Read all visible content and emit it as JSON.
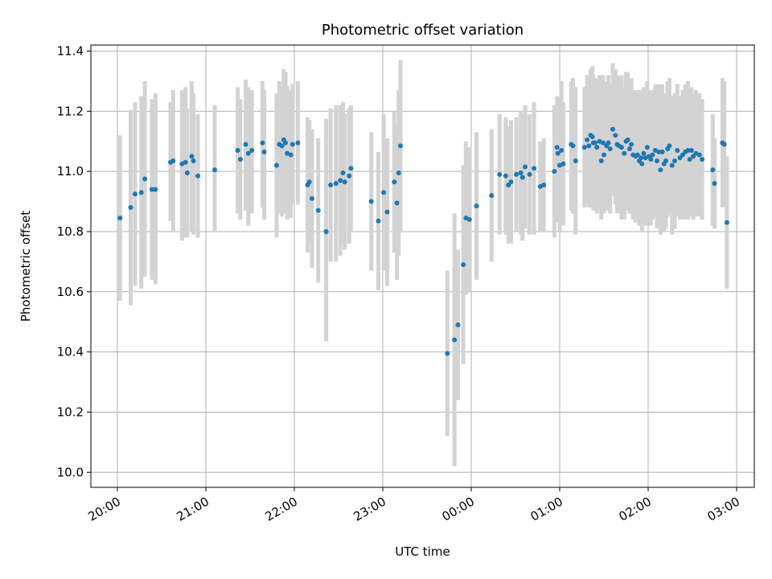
{
  "chart_data": {
    "type": "scatter",
    "title": "Photometric offset variation",
    "xlabel": "UTC time",
    "ylabel": "Photometric offset",
    "x_unit": "hours after 20:00 UTC",
    "xlim": [
      -0.3,
      7.2
    ],
    "ylim": [
      9.95,
      11.42
    ],
    "x_ticks": [
      0,
      1,
      2,
      3,
      4,
      5,
      6,
      7
    ],
    "x_tick_labels": [
      "20:00",
      "21:00",
      "22:00",
      "23:00",
      "00:00",
      "01:00",
      "02:00",
      "03:00"
    ],
    "y_ticks": [
      10.0,
      10.2,
      10.4,
      10.6,
      10.8,
      11.0,
      11.2,
      11.4
    ],
    "y_tick_labels": [
      "10.0",
      "10.2",
      "10.4",
      "10.6",
      "10.8",
      "11.0",
      "11.2",
      "11.4"
    ],
    "grid": true,
    "colors": {
      "point": "#1f77b4",
      "errorbar": "#d3d3d3",
      "grid": "#b0b0b0"
    },
    "series": [
      {
        "points": [
          [
            0.03,
            10.845,
            10.57,
            11.12
          ],
          [
            0.15,
            10.88,
            10.555,
            11.205
          ],
          [
            0.2,
            10.925,
            10.62,
            11.23
          ],
          [
            0.27,
            10.93,
            10.61,
            11.25
          ],
          [
            0.31,
            10.975,
            10.65,
            11.3
          ],
          [
            0.39,
            10.94,
            10.64,
            11.24
          ],
          [
            0.43,
            10.94,
            10.625,
            11.26
          ],
          [
            0.6,
            11.03,
            10.835,
            11.23
          ],
          [
            0.63,
            11.035,
            10.8,
            11.27
          ],
          [
            0.73,
            11.025,
            10.77,
            11.27
          ],
          [
            0.77,
            11.03,
            10.78,
            11.28
          ],
          [
            0.79,
            10.995,
            10.78,
            11.21
          ],
          [
            0.84,
            11.05,
            10.8,
            11.3
          ],
          [
            0.86,
            11.035,
            10.79,
            11.26
          ],
          [
            0.91,
            10.985,
            10.78,
            11.19
          ],
          [
            1.1,
            11.005,
            10.8,
            11.22
          ],
          [
            1.36,
            11.07,
            10.86,
            11.28
          ],
          [
            1.39,
            11.04,
            10.84,
            11.24
          ],
          [
            1.45,
            11.09,
            10.87,
            11.305
          ],
          [
            1.48,
            11.06,
            10.82,
            11.28
          ],
          [
            1.52,
            11.07,
            10.86,
            11.27
          ],
          [
            1.64,
            11.095,
            10.88,
            11.3
          ],
          [
            1.66,
            11.065,
            10.84,
            11.27
          ],
          [
            1.8,
            11.02,
            10.78,
            11.26
          ],
          [
            1.83,
            11.09,
            10.86,
            11.3
          ],
          [
            1.86,
            11.085,
            10.85,
            11.28
          ],
          [
            1.88,
            11.105,
            10.86,
            11.34
          ],
          [
            1.9,
            11.095,
            10.86,
            11.33
          ],
          [
            1.92,
            11.06,
            10.84,
            11.285
          ],
          [
            1.96,
            11.055,
            10.845,
            11.27
          ],
          [
            1.98,
            11.09,
            10.89,
            11.29
          ],
          [
            2.04,
            11.095,
            10.89,
            11.3
          ],
          [
            2.15,
            10.955,
            10.73,
            11.18
          ],
          [
            2.17,
            10.965,
            10.76,
            11.17
          ],
          [
            2.2,
            10.91,
            10.68,
            11.14
          ],
          [
            2.27,
            10.87,
            10.63,
            11.11
          ],
          [
            2.36,
            10.8,
            10.435,
            11.175
          ],
          [
            2.41,
            10.955,
            10.7,
            11.21
          ],
          [
            2.47,
            10.96,
            10.7,
            11.22
          ],
          [
            2.52,
            10.97,
            10.72,
            11.22
          ],
          [
            2.55,
            10.995,
            10.76,
            11.23
          ],
          [
            2.57,
            10.965,
            10.74,
            11.19
          ],
          [
            2.62,
            10.985,
            10.76,
            11.21
          ],
          [
            2.64,
            11.01,
            10.8,
            11.22
          ],
          [
            2.87,
            10.9,
            10.67,
            11.13
          ],
          [
            2.95,
            10.835,
            10.605,
            11.065
          ],
          [
            3.01,
            10.93,
            10.67,
            11.19
          ],
          [
            3.05,
            10.865,
            10.62,
            11.11
          ],
          [
            3.13,
            10.965,
            10.73,
            11.2
          ],
          [
            3.16,
            10.895,
            10.64,
            11.15
          ],
          [
            3.18,
            10.995,
            10.72,
            11.27
          ],
          [
            3.2,
            11.085,
            10.8,
            11.37
          ],
          [
            3.73,
            10.395,
            10.12,
            10.67
          ],
          [
            3.81,
            10.44,
            10.02,
            10.86
          ],
          [
            3.85,
            10.49,
            10.24,
            10.74
          ],
          [
            3.91,
            10.69,
            10.36,
            11.02
          ],
          [
            3.94,
            10.845,
            10.59,
            11.1
          ],
          [
            3.98,
            10.84,
            10.6,
            11.08
          ],
          [
            4.06,
            10.885,
            10.64,
            11.13
          ],
          [
            4.23,
            10.92,
            10.7,
            11.14
          ],
          [
            4.32,
            10.99,
            10.79,
            11.19
          ],
          [
            4.39,
            10.985,
            10.79,
            11.18
          ],
          [
            4.42,
            10.955,
            10.76,
            11.15
          ],
          [
            4.45,
            10.965,
            10.76,
            11.17
          ],
          [
            4.51,
            10.99,
            10.8,
            11.18
          ],
          [
            4.56,
            10.995,
            10.79,
            11.2
          ],
          [
            4.58,
            10.98,
            10.77,
            11.19
          ],
          [
            4.61,
            11.015,
            10.81,
            11.22
          ],
          [
            4.66,
            10.99,
            10.79,
            11.19
          ],
          [
            4.71,
            11.01,
            10.79,
            11.23
          ],
          [
            4.78,
            10.95,
            10.8,
            11.1
          ],
          [
            4.82,
            10.955,
            10.8,
            11.11
          ],
          [
            4.94,
            11.0,
            10.78,
            11.22
          ],
          [
            4.97,
            11.08,
            10.83,
            11.25
          ],
          [
            4.98,
            11.06,
            10.84,
            11.24
          ],
          [
            5.0,
            11.02,
            10.8,
            11.24
          ],
          [
            5.02,
            11.07,
            10.84,
            11.3
          ],
          [
            5.04,
            11.025,
            10.82,
            11.23
          ],
          [
            5.13,
            11.09,
            10.87,
            11.3
          ],
          [
            5.15,
            11.085,
            10.86,
            11.31
          ],
          [
            5.18,
            11.035,
            10.79,
            11.28
          ],
          [
            5.28,
            11.08,
            10.88,
            11.28
          ],
          [
            5.31,
            11.105,
            10.89,
            11.32
          ],
          [
            5.33,
            11.085,
            10.88,
            11.28
          ],
          [
            5.35,
            11.12,
            10.89,
            11.34
          ],
          [
            5.37,
            11.115,
            10.88,
            11.35
          ],
          [
            5.38,
            11.095,
            10.87,
            11.32
          ],
          [
            5.4,
            11.095,
            10.88,
            11.31
          ],
          [
            5.42,
            11.08,
            10.86,
            11.3
          ],
          [
            5.45,
            11.1,
            10.88,
            11.32
          ],
          [
            5.47,
            11.035,
            10.84,
            11.23
          ],
          [
            5.49,
            11.095,
            10.87,
            11.32
          ],
          [
            5.5,
            11.055,
            10.86,
            11.27
          ],
          [
            5.53,
            11.085,
            10.87,
            11.3
          ],
          [
            5.55,
            11.095,
            10.87,
            11.32
          ],
          [
            5.57,
            11.075,
            10.86,
            11.29
          ],
          [
            5.6,
            11.14,
            10.92,
            11.36
          ],
          [
            5.63,
            11.12,
            10.89,
            11.34
          ],
          [
            5.65,
            11.09,
            10.86,
            11.32
          ],
          [
            5.67,
            11.085,
            10.86,
            11.31
          ],
          [
            5.7,
            11.08,
            10.84,
            11.32
          ],
          [
            5.73,
            11.06,
            10.84,
            11.28
          ],
          [
            5.75,
            11.1,
            10.87,
            11.33
          ],
          [
            5.77,
            11.105,
            10.88,
            11.33
          ],
          [
            5.79,
            11.075,
            10.86,
            11.29
          ],
          [
            5.81,
            11.09,
            10.87,
            11.31
          ],
          [
            5.83,
            11.055,
            10.84,
            11.27
          ],
          [
            5.86,
            11.05,
            10.83,
            11.27
          ],
          [
            5.88,
            11.055,
            10.84,
            11.27
          ],
          [
            5.9,
            11.035,
            10.82,
            11.25
          ],
          [
            5.92,
            11.045,
            10.82,
            11.27
          ],
          [
            5.93,
            11.025,
            10.8,
            11.25
          ],
          [
            5.95,
            11.06,
            10.84,
            11.28
          ],
          [
            5.97,
            11.045,
            10.82,
            11.27
          ],
          [
            5.99,
            11.08,
            10.86,
            11.3
          ],
          [
            6.01,
            11.05,
            10.83,
            11.27
          ],
          [
            6.03,
            11.04,
            10.82,
            11.26
          ],
          [
            6.05,
            11.055,
            10.84,
            11.27
          ],
          [
            6.08,
            11.07,
            10.85,
            11.29
          ],
          [
            6.1,
            11.035,
            10.81,
            11.26
          ],
          [
            6.12,
            11.065,
            10.84,
            11.29
          ],
          [
            6.14,
            11.005,
            10.79,
            11.22
          ],
          [
            6.16,
            11.065,
            10.84,
            11.29
          ],
          [
            6.18,
            11.025,
            10.8,
            11.25
          ],
          [
            6.2,
            11.035,
            10.81,
            11.26
          ],
          [
            6.22,
            11.075,
            10.85,
            11.3
          ],
          [
            6.24,
            11.085,
            10.86,
            11.31
          ],
          [
            6.27,
            11.02,
            10.79,
            11.25
          ],
          [
            6.3,
            11.035,
            10.81,
            11.26
          ],
          [
            6.33,
            11.07,
            10.85,
            11.29
          ],
          [
            6.36,
            11.045,
            10.84,
            11.25
          ],
          [
            6.39,
            11.055,
            10.84,
            11.27
          ],
          [
            6.42,
            11.065,
            10.84,
            11.29
          ],
          [
            6.45,
            11.07,
            10.84,
            11.3
          ],
          [
            6.47,
            11.04,
            10.85,
            11.23
          ],
          [
            6.49,
            11.07,
            10.86,
            11.28
          ],
          [
            6.51,
            11.05,
            10.84,
            11.26
          ],
          [
            6.54,
            11.06,
            10.85,
            11.27
          ],
          [
            6.58,
            11.055,
            10.85,
            11.26
          ],
          [
            6.61,
            11.04,
            10.84,
            11.24
          ],
          [
            6.73,
            11.005,
            10.82,
            11.19
          ],
          [
            6.75,
            10.96,
            10.81,
            11.11
          ],
          [
            6.84,
            11.095,
            10.88,
            11.31
          ],
          [
            6.86,
            11.09,
            10.88,
            11.3
          ],
          [
            6.89,
            10.83,
            10.61,
            11.05
          ]
        ]
      }
    ]
  }
}
